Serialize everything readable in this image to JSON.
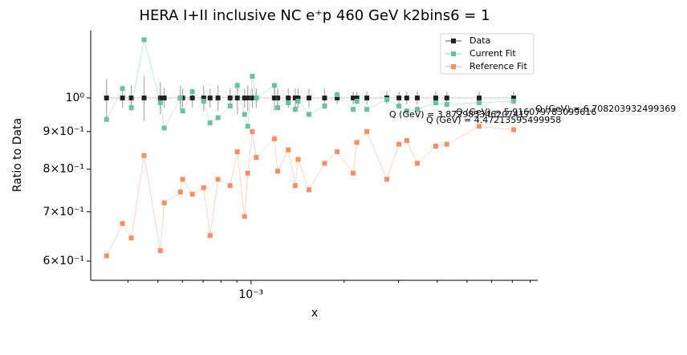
{
  "chart_data": {
    "type": "scatter",
    "title": "HERA I+II inclusive NC e⁺p 460 GeV k2bins6 = 1",
    "x_label": "x",
    "y_label": "Ratio to Data",
    "x_log": true,
    "y_log": true,
    "xlim": [
      0.000303,
      0.00846
    ],
    "ylim": [
      0.565,
      1.235
    ],
    "xticks": [
      {
        "value": 0.001,
        "label": "10⁻³"
      }
    ],
    "xminorticks": [
      0.0004,
      0.0005,
      0.0006,
      0.0007,
      0.0008,
      0.0009,
      0.002,
      0.003,
      0.004,
      0.005,
      0.006,
      0.007,
      0.008
    ],
    "yticks": [
      {
        "value": 0.6,
        "label": "6×10⁻¹"
      },
      {
        "value": 0.7,
        "label": "7×10⁻¹"
      },
      {
        "value": 0.8,
        "label": "8×10⁻¹"
      },
      {
        "value": 0.9,
        "label": "9×10⁻¹"
      },
      {
        "value": 1,
        "label": "10⁰"
      }
    ],
    "legend": "upper right",
    "x": [
      0.000341,
      0.000384,
      0.00041,
      0.000451,
      0.000509,
      0.000524,
      0.000591,
      0.000601,
      0.000646,
      0.000703,
      0.000737,
      0.000782,
      0.000856,
      0.000903,
      0.000953,
      0.000976,
      0.00101,
      0.00104,
      0.00119,
      0.00122,
      0.00132,
      0.00139,
      0.00142,
      0.00154,
      0.00173,
      0.0019,
      0.00214,
      0.0022,
      0.00237,
      0.00275,
      0.00301,
      0.00319,
      0.00345,
      0.00396,
      0.0043,
      0.00547,
      0.00707
    ],
    "series": [
      {
        "name": "Data",
        "color": "#222222",
        "values": [
          1,
          1,
          1,
          1,
          1,
          1,
          1,
          1,
          1,
          1,
          1,
          1,
          1,
          1,
          1,
          1,
          1,
          1,
          1,
          1,
          1,
          1,
          1,
          1,
          1,
          1,
          1,
          1,
          1,
          1,
          1,
          1,
          1,
          1,
          1,
          1,
          1
        ],
        "errors": [
          0.06,
          0.03,
          0.04,
          0.07,
          0.05,
          0.03,
          0.04,
          0.03,
          0.03,
          0.04,
          0.03,
          0.04,
          0.03,
          0.05,
          0.03,
          0.04,
          0.03,
          0.03,
          0.04,
          0.03,
          0.03,
          0.03,
          0.03,
          0.03,
          0.03,
          0.02,
          0.02,
          0.02,
          0.02,
          0.02,
          0.02,
          0.02,
          0.02,
          0.02,
          0.02,
          0.02,
          0.02
        ]
      },
      {
        "name": "Current Fit",
        "color": "#66c2a5",
        "values": [
          0.935,
          1.03,
          0.97,
          1.2,
          0.985,
          0.91,
          1.0,
          0.96,
          1.02,
          0.99,
          0.925,
          0.94,
          0.975,
          1.04,
          0.95,
          0.915,
          1.07,
          1.0,
          1.04,
          0.97,
          0.985,
          0.965,
          0.99,
          0.95,
          0.975,
          1.01,
          0.965,
          0.99,
          0.965,
          0.995,
          0.975,
          0.96,
          0.965,
          0.985,
          0.98,
          0.985,
          0.99
        ]
      },
      {
        "name": "Reference Fit",
        "color": "#fc8d62",
        "values": [
          0.61,
          0.675,
          0.645,
          0.835,
          0.62,
          0.72,
          0.745,
          0.775,
          0.74,
          0.755,
          0.65,
          0.775,
          0.76,
          0.845,
          0.69,
          0.79,
          0.9,
          0.83,
          0.88,
          0.795,
          0.85,
          0.76,
          0.825,
          0.75,
          0.815,
          0.845,
          0.79,
          0.87,
          0.9,
          0.775,
          0.865,
          0.875,
          0.815,
          0.86,
          0.865,
          0.915,
          0.905
        ]
      }
    ],
    "annotations": [
      "Q (GeV) = 6.708203932499369",
      "Q (GeV) = 5.916079783099616",
      "Q (GeV) = 3.872983346207417",
      "Q (GeV) = 4.47213595499958"
    ]
  }
}
